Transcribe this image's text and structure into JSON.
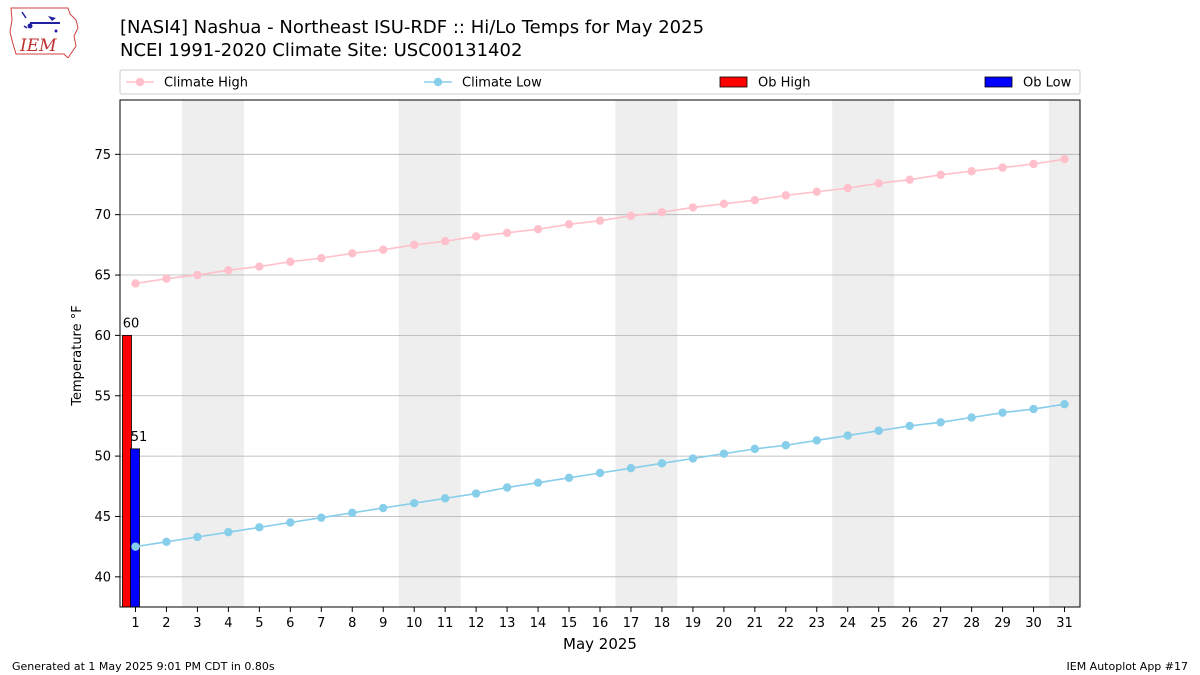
{
  "title_line1": "[NASI4] Nashua - Northeast ISU-RDF :: Hi/Lo Temps for May 2025",
  "title_line2": "NCEI 1991-2020 Climate Site: USC00131402",
  "logo_text": "IEM",
  "footer_left": "Generated at 1 May 2025 9:01 PM CDT in 0.80s",
  "footer_right": "IEM Autoplot App #17",
  "colors": {
    "climate_high": "#ffc0cb",
    "climate_low": "#87ceeb",
    "ob_high": "#ff0000",
    "ob_low": "#0000ff",
    "weekend_band": "#eeeeee",
    "grid": "#b0b0b0"
  },
  "chart_data": {
    "type": "bar",
    "xlabel": "May 2025",
    "ylabel": "Temperature °F",
    "xlim": [
      0.5,
      31.5
    ],
    "ylim": [
      37.5,
      79.5
    ],
    "x_ticks": [
      1,
      2,
      3,
      4,
      5,
      6,
      7,
      8,
      9,
      10,
      11,
      12,
      13,
      14,
      15,
      16,
      17,
      18,
      19,
      20,
      21,
      22,
      23,
      24,
      25,
      26,
      27,
      28,
      29,
      30,
      31
    ],
    "y_ticks": [
      40,
      45,
      50,
      55,
      60,
      65,
      70,
      75
    ],
    "grid": "horizontal",
    "legend_position": "top",
    "weekend_bands": [
      [
        3,
        4
      ],
      [
        10,
        11
      ],
      [
        17,
        18
      ],
      [
        24,
        25
      ],
      [
        31,
        31
      ]
    ],
    "series": [
      {
        "name": "Climate High",
        "kind": "line",
        "x": [
          1,
          2,
          3,
          4,
          5,
          6,
          7,
          8,
          9,
          10,
          11,
          12,
          13,
          14,
          15,
          16,
          17,
          18,
          19,
          20,
          21,
          22,
          23,
          24,
          25,
          26,
          27,
          28,
          29,
          30,
          31
        ],
        "values": [
          64.3,
          64.7,
          65.0,
          65.4,
          65.7,
          66.1,
          66.4,
          66.8,
          67.1,
          67.5,
          67.8,
          68.2,
          68.5,
          68.8,
          69.2,
          69.5,
          69.9,
          70.2,
          70.6,
          70.9,
          71.2,
          71.6,
          71.9,
          72.2,
          72.6,
          72.9,
          73.3,
          73.6,
          73.9,
          74.2,
          74.6
        ]
      },
      {
        "name": "Climate Low",
        "kind": "line",
        "x": [
          1,
          2,
          3,
          4,
          5,
          6,
          7,
          8,
          9,
          10,
          11,
          12,
          13,
          14,
          15,
          16,
          17,
          18,
          19,
          20,
          21,
          22,
          23,
          24,
          25,
          26,
          27,
          28,
          29,
          30,
          31
        ],
        "values": [
          42.5,
          42.9,
          43.3,
          43.7,
          44.1,
          44.5,
          44.9,
          45.3,
          45.7,
          46.1,
          46.5,
          46.9,
          47.4,
          47.8,
          48.2,
          48.6,
          49.0,
          49.4,
          49.8,
          50.2,
          50.6,
          50.9,
          51.3,
          51.7,
          52.1,
          52.5,
          52.8,
          53.2,
          53.6,
          53.9,
          54.3
        ]
      },
      {
        "name": "Ob High",
        "kind": "bar",
        "x": [
          1
        ],
        "values": [
          60
        ],
        "labels": [
          "60"
        ]
      },
      {
        "name": "Ob Low",
        "kind": "bar",
        "x": [
          1
        ],
        "values": [
          50.6
        ],
        "labels": [
          "51"
        ]
      }
    ]
  }
}
